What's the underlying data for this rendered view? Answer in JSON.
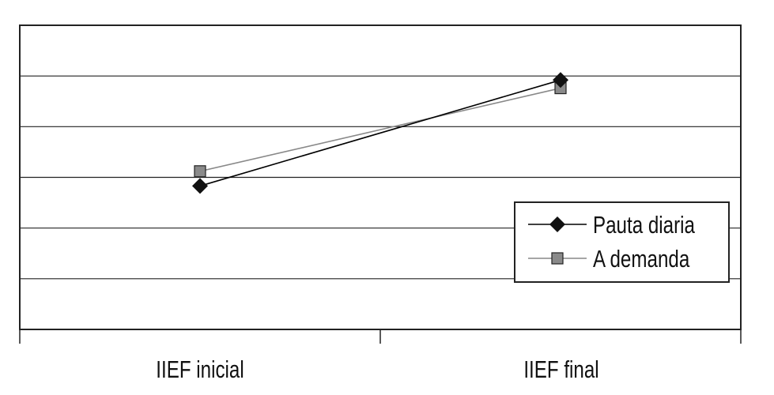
{
  "chart_data": {
    "type": "line",
    "categories": [
      "IIEF inicial",
      "IIEF final"
    ],
    "series": [
      {
        "name": "Pauta diaria",
        "marker": "diamond",
        "color": "#000000",
        "values": [
          2.83,
          4.92
        ]
      },
      {
        "name": "A demanda",
        "marker": "square",
        "color": "#888888",
        "values": [
          3.12,
          4.76
        ]
      }
    ],
    "ylim": [
      0,
      6
    ],
    "grid": true,
    "legend": "right"
  }
}
